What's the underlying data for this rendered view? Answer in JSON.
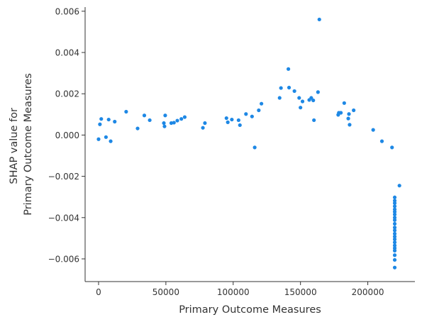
{
  "chart_data": {
    "type": "scatter",
    "xlabel": "Primary Outcome Measures",
    "ylabel_lines": [
      "SHAP value for",
      "Primary Outcome Measures"
    ],
    "xlim": [
      -10000,
      235000
    ],
    "ylim": [
      -0.0071,
      0.0062
    ],
    "x_ticks": [
      {
        "value": 0,
        "label": "0"
      },
      {
        "value": 50000,
        "label": "50000"
      },
      {
        "value": 100000,
        "label": "100000"
      },
      {
        "value": 150000,
        "label": "150000"
      },
      {
        "value": 200000,
        "label": "200000"
      }
    ],
    "y_ticks": [
      {
        "value": 0.006,
        "label": "0.006"
      },
      {
        "value": 0.004,
        "label": "0.004"
      },
      {
        "value": 0.002,
        "label": "0.002"
      },
      {
        "value": 0.0,
        "label": "0.000"
      },
      {
        "value": -0.002,
        "label": "−0.002"
      },
      {
        "value": -0.004,
        "label": "−0.004"
      },
      {
        "value": -0.006,
        "label": "−0.006"
      }
    ],
    "point_color": "#1e88e5",
    "grid": false,
    "points": [
      [
        0,
        -0.0002
      ],
      [
        1000,
        0.00052
      ],
      [
        2000,
        0.00078
      ],
      [
        5500,
        -0.0001
      ],
      [
        7500,
        0.00075
      ],
      [
        9000,
        -0.0003
      ],
      [
        12000,
        0.00065
      ],
      [
        20500,
        0.00113
      ],
      [
        29000,
        0.00032
      ],
      [
        34000,
        0.00095
      ],
      [
        38000,
        0.00072
      ],
      [
        48500,
        0.00058
      ],
      [
        49000,
        0.00042
      ],
      [
        49500,
        0.00095
      ],
      [
        54000,
        0.00058
      ],
      [
        56000,
        0.0006
      ],
      [
        58500,
        0.0007
      ],
      [
        61500,
        0.00078
      ],
      [
        64000,
        0.00087
      ],
      [
        77500,
        0.00035
      ],
      [
        79000,
        0.00058
      ],
      [
        95000,
        0.00082
      ],
      [
        96000,
        0.00062
      ],
      [
        99000,
        0.00075
      ],
      [
        104000,
        0.00072
      ],
      [
        105000,
        0.00048
      ],
      [
        109500,
        0.00102
      ],
      [
        114000,
        0.0009
      ],
      [
        116000,
        -0.0006
      ],
      [
        119000,
        0.0012
      ],
      [
        121000,
        0.00152
      ],
      [
        134500,
        0.0018
      ],
      [
        135500,
        0.00228
      ],
      [
        141000,
        0.0032
      ],
      [
        141500,
        0.0023
      ],
      [
        145500,
        0.00213
      ],
      [
        149000,
        0.0018
      ],
      [
        150000,
        0.00133
      ],
      [
        151500,
        0.00163
      ],
      [
        156500,
        0.0017
      ],
      [
        158000,
        0.0018
      ],
      [
        159500,
        0.00168
      ],
      [
        160000,
        0.00072
      ],
      [
        163000,
        0.00208
      ],
      [
        164000,
        0.0056
      ],
      [
        178000,
        0.00098
      ],
      [
        178500,
        0.00108
      ],
      [
        180000,
        0.00108
      ],
      [
        182500,
        0.00155
      ],
      [
        185500,
        0.0008
      ],
      [
        186000,
        0.00102
      ],
      [
        186500,
        0.0005
      ],
      [
        189500,
        0.0012
      ],
      [
        204000,
        0.00025
      ],
      [
        210500,
        -0.0003
      ],
      [
        218000,
        -0.0006
      ],
      [
        223500,
        -0.00245
      ],
      [
        220000,
        -0.00302
      ],
      [
        220000,
        -0.00318
      ],
      [
        220000,
        -0.0033
      ],
      [
        220000,
        -0.00345
      ],
      [
        220000,
        -0.0036
      ],
      [
        220000,
        -0.00372
      ],
      [
        220000,
        -0.00385
      ],
      [
        220000,
        -0.004
      ],
      [
        220000,
        -0.00412
      ],
      [
        220000,
        -0.0043
      ],
      [
        220000,
        -0.00448
      ],
      [
        220000,
        -0.00462
      ],
      [
        220000,
        -0.00478
      ],
      [
        220000,
        -0.00492
      ],
      [
        220000,
        -0.00505
      ],
      [
        220000,
        -0.0052
      ],
      [
        220000,
        -0.00535
      ],
      [
        220000,
        -0.00548
      ],
      [
        220000,
        -0.0056
      ],
      [
        220000,
        -0.00582
      ],
      [
        220000,
        -0.00605
      ],
      [
        220000,
        -0.00642
      ]
    ]
  }
}
